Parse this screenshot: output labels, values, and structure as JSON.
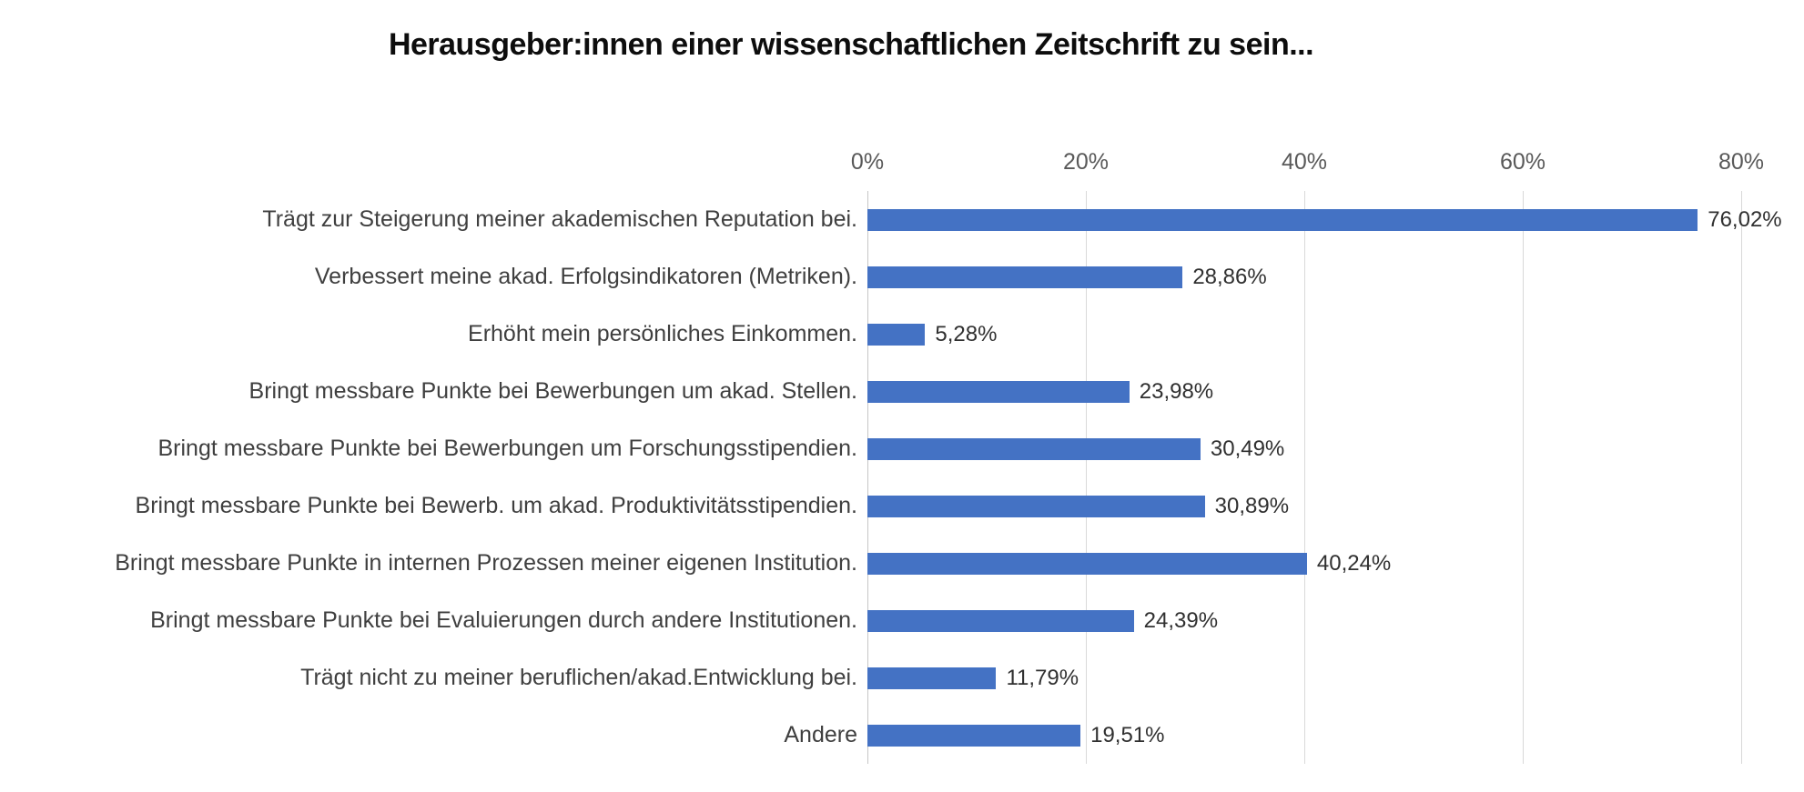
{
  "title": "Herausgeber:innen einer wissenschaftlichen Zeitschrift zu sein...",
  "axis": {
    "ticks": [
      "0%",
      "20%",
      "40%",
      "60%",
      "80%"
    ],
    "max_percent": 80
  },
  "colors": {
    "bar": "#4472C4",
    "gridline": "#D9D9D9",
    "axis_line": "#C6C6C6",
    "title_text": "#0D0D0D",
    "category_text": "#3F3F3F",
    "value_text": "#303030",
    "tick_text": "#595959",
    "background": "#FFFFFF"
  },
  "chart_data": {
    "type": "bar",
    "orientation": "horizontal",
    "title": "Herausgeber:innen einer wissenschaftlichen Zeitschrift zu sein...",
    "xlabel": "",
    "ylabel": "",
    "xlim": [
      0,
      80
    ],
    "x_tick_labels": [
      "0%",
      "20%",
      "40%",
      "60%",
      "80%"
    ],
    "grid": true,
    "legend": false,
    "bar_color": "#4472C4",
    "categories": [
      "Trägt zur Steigerung meiner akademischen Reputation bei.",
      "Verbessert meine akad. Erfolgsindikatoren (Metriken).",
      "Erhöht mein persönliches Einkommen.",
      "Bringt messbare Punkte bei Bewerbungen um akad. Stellen.",
      "Bringt messbare Punkte bei Bewerbungen um Forschungsstipendien.",
      "Bringt messbare Punkte bei Bewerb. um akad. Produktivitätsstipendien.",
      "Bringt messbare Punkte in internen Prozessen meiner eigenen Institution.",
      "Bringt messbare Punkte bei Evaluierungen durch andere Institutionen.",
      "Trägt nicht zu meiner beruflichen/akad.Entwicklung bei.",
      "Andere"
    ],
    "values": [
      76.02,
      28.86,
      5.28,
      23.98,
      30.49,
      30.89,
      40.24,
      24.39,
      11.79,
      19.51
    ],
    "value_labels": [
      "76,02%",
      "28,86%",
      "5,28%",
      "23,98%",
      "30,49%",
      "30,89%",
      "40,24%",
      "24,39%",
      "11,79%",
      "19,51%"
    ]
  }
}
